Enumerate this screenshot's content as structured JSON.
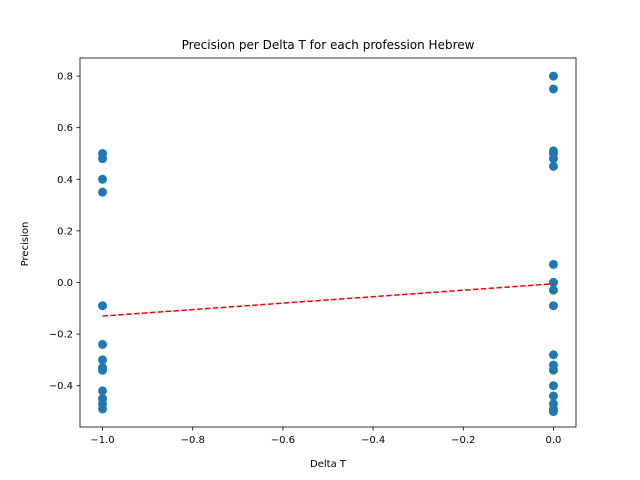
{
  "chart_data": {
    "type": "scatter",
    "title": "Precision per Delta T for each profession Hebrew",
    "xlabel": "Delta T",
    "ylabel": "Precision",
    "xlim": [
      -1.05,
      0.05
    ],
    "ylim": [
      -0.56,
      0.87
    ],
    "xticks": [
      -1.0,
      -0.8,
      -0.6,
      -0.4,
      -0.2,
      0.0
    ],
    "xtick_labels": [
      "−1.0",
      "−0.8",
      "−0.6",
      "−0.4",
      "−0.2",
      "0.0"
    ],
    "yticks": [
      -0.4,
      -0.2,
      0.0,
      0.2,
      0.4,
      0.6,
      0.8
    ],
    "ytick_labels": [
      "−0.4",
      "−0.2",
      "0.0",
      "0.2",
      "0.4",
      "0.6",
      "0.8"
    ],
    "grid": false,
    "marker_color": "#1f77b4",
    "trend_color": "#ff0000",
    "series": [
      {
        "points": [
          [
            -1.0,
            0.5
          ],
          [
            -1.0,
            0.48
          ],
          [
            -1.0,
            0.4
          ],
          [
            -1.0,
            0.35
          ],
          [
            -1.0,
            -0.09
          ],
          [
            -1.0,
            -0.24
          ],
          [
            -1.0,
            -0.3
          ],
          [
            -1.0,
            -0.33
          ],
          [
            -1.0,
            -0.34
          ],
          [
            -1.0,
            -0.42
          ],
          [
            -1.0,
            -0.45
          ],
          [
            -1.0,
            -0.47
          ],
          [
            -1.0,
            -0.49
          ],
          [
            0.0,
            0.8
          ],
          [
            0.0,
            0.75
          ],
          [
            0.0,
            0.51
          ],
          [
            0.0,
            0.5
          ],
          [
            0.0,
            0.48
          ],
          [
            0.0,
            0.45
          ],
          [
            0.0,
            0.07
          ],
          [
            0.0,
            0.0
          ],
          [
            0.0,
            0.0
          ],
          [
            0.0,
            -0.03
          ],
          [
            0.0,
            -0.09
          ],
          [
            0.0,
            -0.28
          ],
          [
            0.0,
            -0.32
          ],
          [
            0.0,
            -0.34
          ],
          [
            0.0,
            -0.4
          ],
          [
            0.0,
            -0.44
          ],
          [
            0.0,
            -0.47
          ],
          [
            0.0,
            -0.49
          ],
          [
            0.0,
            -0.5
          ]
        ]
      }
    ],
    "trendline": {
      "style": "dashed",
      "x": [
        -1.0,
        0.0
      ],
      "y": [
        -0.13,
        -0.005
      ]
    }
  }
}
